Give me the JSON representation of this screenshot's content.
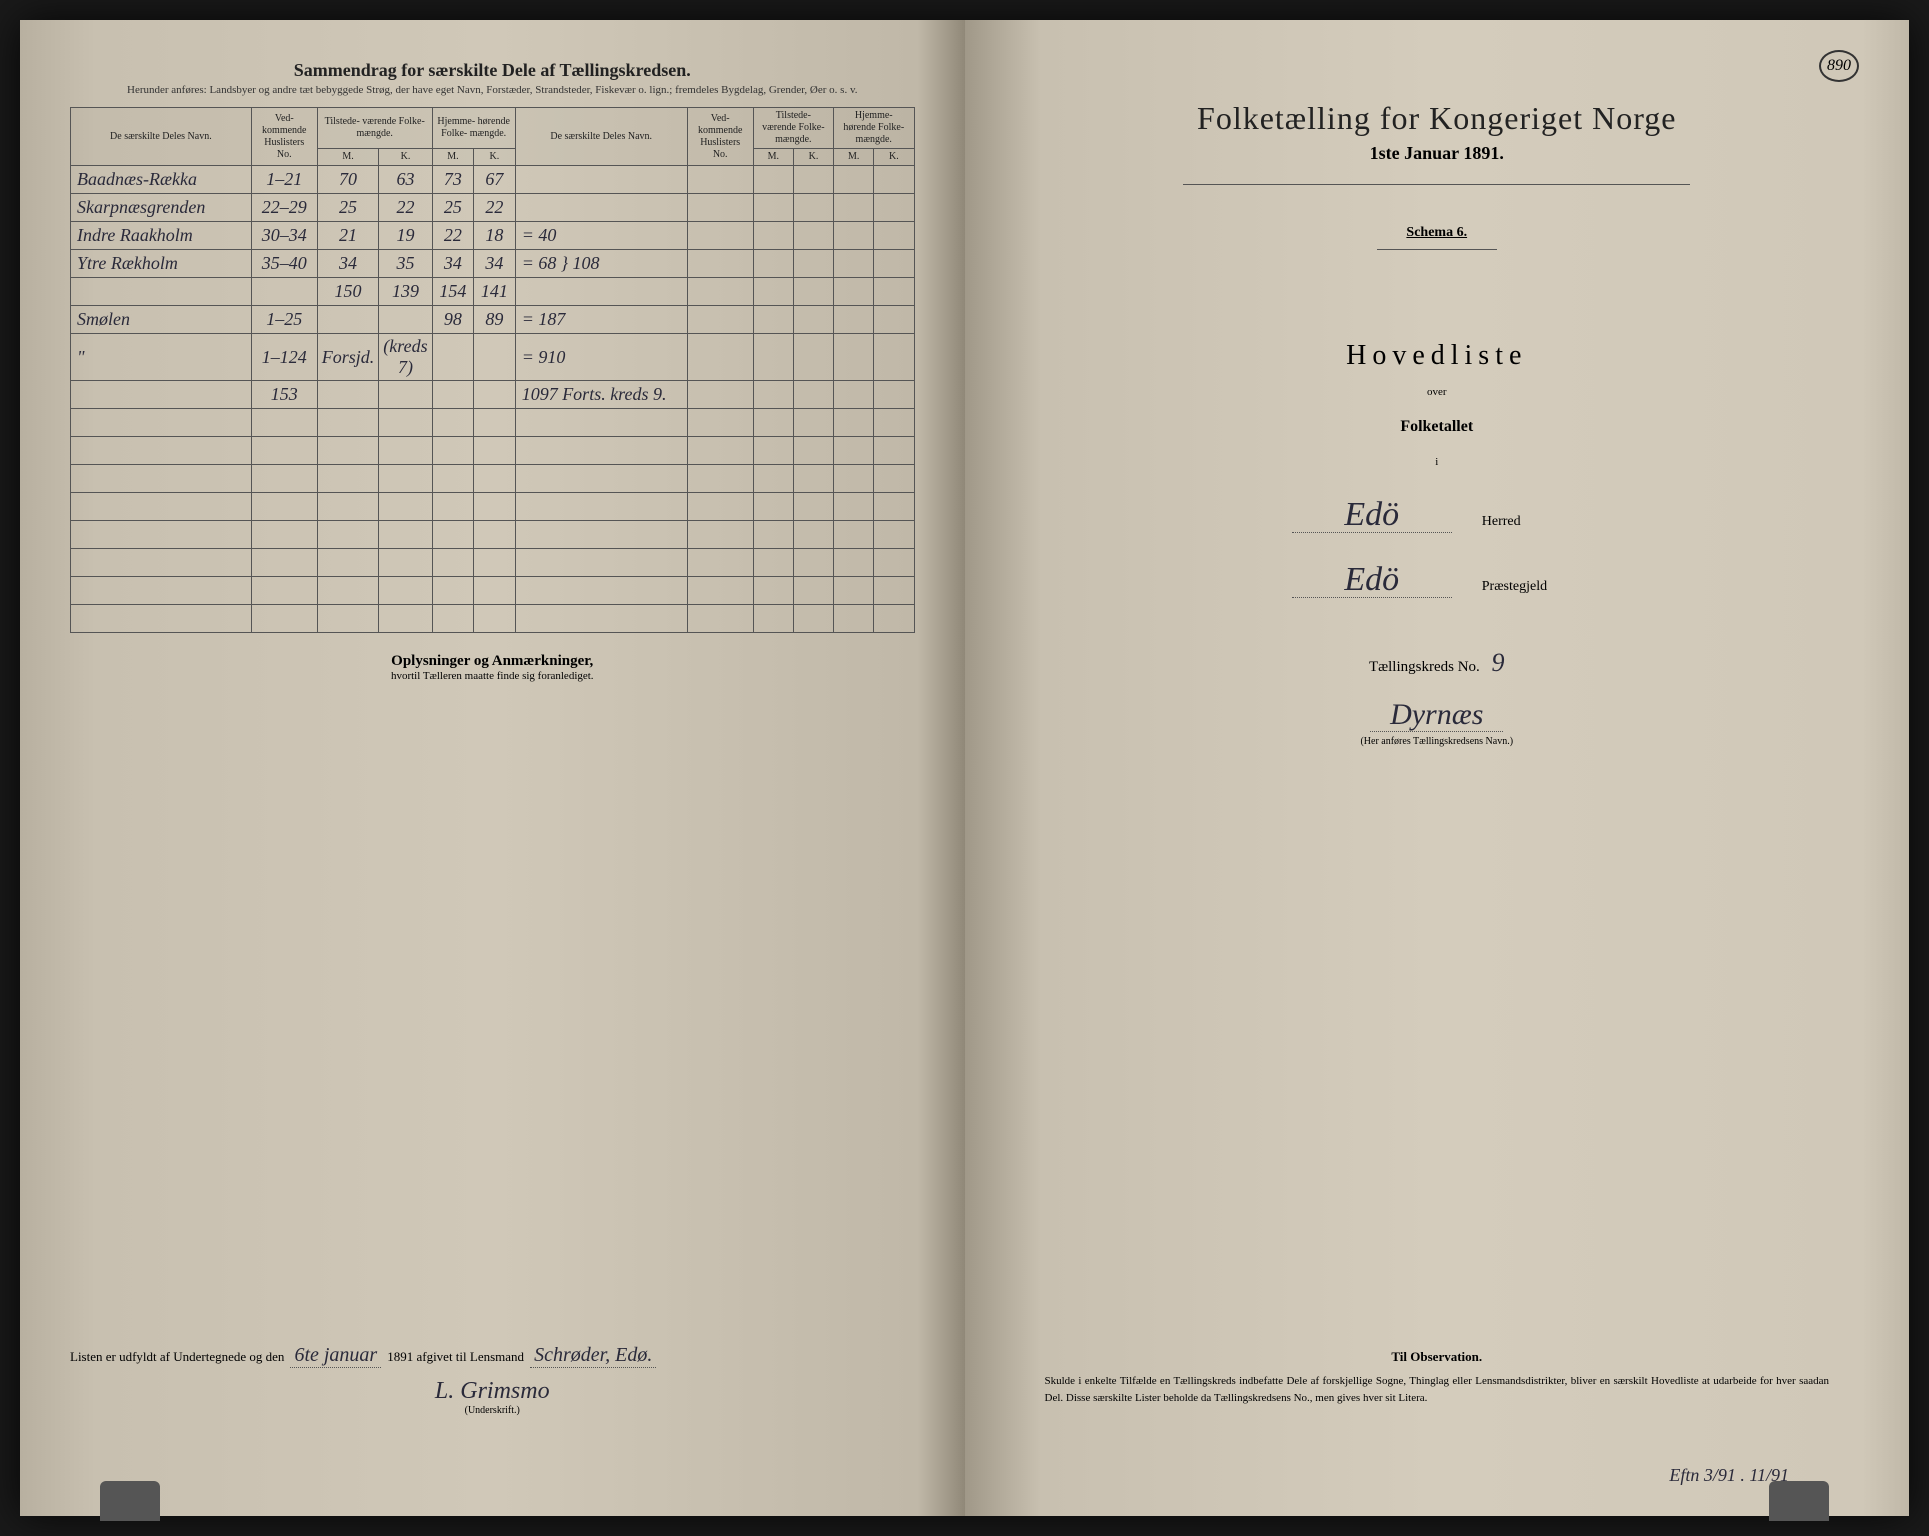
{
  "pageNumber": "890",
  "left": {
    "title": "Sammendrag for særskilte Dele af Tællingskredsen.",
    "subtitle": "Herunder anføres: Landsbyer og andre tæt bebyggede Strøg, der have eget Navn, Forstæder, Strandsteder, Fiskevær o. lign.; fremdeles Bygdelag, Grender, Øer o. s. v.",
    "headers": {
      "name": "De særskilte Deles Navn.",
      "huslister": "Ved-\nkommende\nHuslisters\nNo.",
      "tilstede": "Tilstede-\nværende\nFolke-\nmængde.",
      "hjemme": "Hjemme-\nhørende\nFolke-\nmængde.",
      "m": "M.",
      "k": "K."
    },
    "rows": [
      {
        "name": "Baadnæs-Rækka",
        "no": "1–21",
        "tm": "70",
        "tk": "63",
        "hm": "73",
        "hk": "67",
        "name2": "",
        "no2": "",
        "tm2": "",
        "tk2": "",
        "hm2": "",
        "hk2": ""
      },
      {
        "name": "Skarpnæsgrenden",
        "no": "22–29",
        "tm": "25",
        "tk": "22",
        "hm": "25",
        "hk": "22",
        "name2": "",
        "no2": "",
        "tm2": "",
        "tk2": "",
        "hm2": "",
        "hk2": ""
      },
      {
        "name": "Indre Raakholm",
        "no": "30–34",
        "tm": "21",
        "tk": "19",
        "hm": "22",
        "hk": "18",
        "name2": "= 40",
        "no2": "",
        "tm2": "",
        "tk2": "",
        "hm2": "",
        "hk2": ""
      },
      {
        "name": "Ytre Rækholm",
        "no": "35–40",
        "tm": "34",
        "tk": "35",
        "hm": "34",
        "hk": "34",
        "name2": "= 68  } 108",
        "no2": "",
        "tm2": "",
        "tk2": "",
        "hm2": "",
        "hk2": ""
      },
      {
        "name": "",
        "no": "",
        "tm": "150",
        "tk": "139",
        "hm": "154",
        "hk": "141",
        "name2": "",
        "no2": "",
        "tm2": "",
        "tk2": "",
        "hm2": "",
        "hk2": ""
      },
      {
        "name": "Smølen",
        "no": "1–25",
        "tm": "",
        "tk": "",
        "hm": "98",
        "hk": "89",
        "name2": "= 187",
        "no2": "",
        "tm2": "",
        "tk2": "",
        "hm2": "",
        "hk2": ""
      },
      {
        "name": "   \"",
        "no": "1–124",
        "tm": "Forsjd.",
        "tk": "(kreds 7)",
        "hm": "",
        "hk": "",
        "name2": "= 910",
        "no2": "",
        "tm2": "",
        "tk2": "",
        "hm2": "",
        "hk2": ""
      },
      {
        "name": "",
        "no": "153",
        "tm": "",
        "tk": "",
        "hm": "",
        "hk": "",
        "name2": "1097 Forts. kreds 9.",
        "no2": "",
        "tm2": "",
        "tk2": "",
        "hm2": "",
        "hk2": ""
      }
    ],
    "emptyRows": 8,
    "oplysTitle": "Oplysninger og Anmærkninger,",
    "oplysSub": "hvortil Tælleren maatte finde sig foranlediget.",
    "sigPrefix": "Listen er udfyldt af Undertegnede og den",
    "sigDate": "6te januar",
    "sigYear": "1891 afgivet til Lensmand",
    "sigLensmand": "Schrøder, Edø.",
    "sigName": "L. Grimsmo",
    "sigLabel": "(Underskrift.)"
  },
  "right": {
    "mainTitle": "Folketælling for Kongeriget Norge",
    "mainDate": "1ste Januar 1891.",
    "schema": "Schema 6.",
    "hovedliste": "Hovedliste",
    "over": "over",
    "folketallet": "Folketallet",
    "i": "i",
    "herredValue": "Edö",
    "herredLabel": "Herred",
    "prestValue": "Edö",
    "prestLabel": "Præstegjeld",
    "kredsLabel": "Tællingskreds No.",
    "kredsNo": "9",
    "kredsName": "Dyrnæs",
    "kredsNameLabel": "(Her anføres Tællingskredsens Navn.)",
    "obsTitle": "Til Observation.",
    "obsText": "Skulde i enkelte Tilfælde en Tællingskreds indbefatte Dele af forskjellige Sogne, Thinglag eller Lensmandsdistrikter, bliver en særskilt Hovedliste at udarbeide for hver saadan Del. Disse særskilte Lister beholde da Tællingskredsens No., men gives hver sit Litera.",
    "bottomNote": "Eftn 3/91 . 11/91"
  }
}
